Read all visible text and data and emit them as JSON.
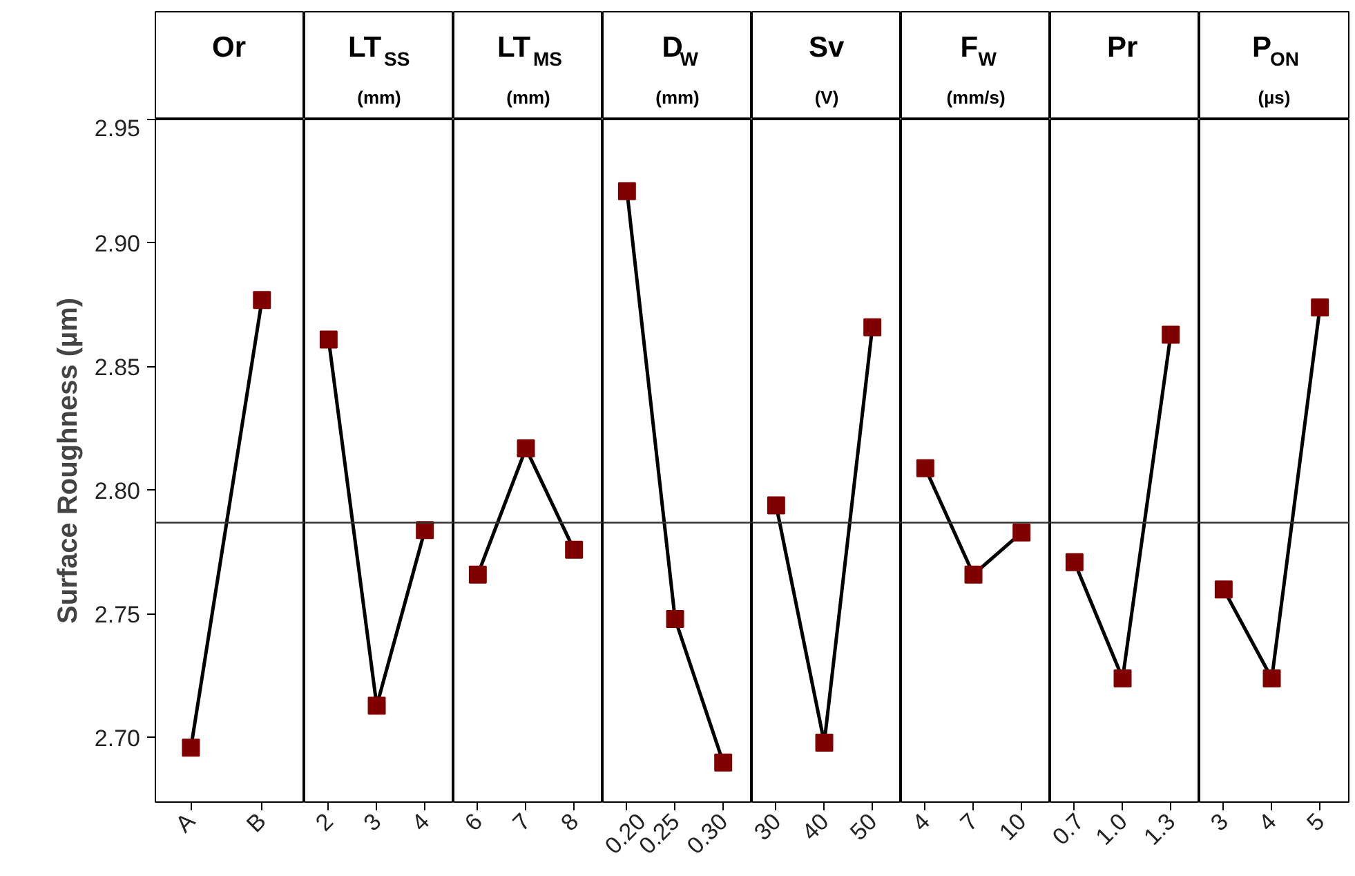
{
  "chart_data": [
    {
      "type": "line",
      "title": "Or",
      "ylabel": "Surface Roughness (µm)",
      "categories": [
        "A",
        "B"
      ],
      "series": [
        {
          "color": "#800000",
          "values": [
            2.696,
            2.877
          ]
        }
      ],
      "ylim": [
        2.674,
        2.95
      ],
      "yticks": [
        {
          "value": 2.7,
          "label": "2.70"
        },
        2.75,
        {
          "value": 2.8,
          "label": "2.80"
        },
        2.85,
        {
          "value": 2.9,
          "label": "2.90"
        },
        2.95
      ],
      "marker": "square",
      "ref_lines": [
        {
          "axis": "y",
          "value": 2.787
        }
      ]
    },
    {
      "type": "line",
      "title": "LT$_{SS}$",
      "subtitle": "(mm)",
      "categories": [
        "2",
        "3",
        "4"
      ],
      "series": [
        {
          "color": "#800000",
          "values": [
            2.861,
            2.713,
            2.784
          ]
        }
      ],
      "ylim": [
        2.674,
        2.95
      ],
      "tick_labels": "x",
      "marker": "square",
      "ref_lines": [
        {
          "axis": "y",
          "value": 2.787
        }
      ]
    },
    {
      "type": "line",
      "title": "LT$_{MS}$",
      "subtitle": "(mm)",
      "categories": [
        "6",
        "7",
        "8"
      ],
      "series": [
        {
          "color": "#800000",
          "values": [
            2.766,
            2.817,
            2.776
          ]
        }
      ],
      "ylim": [
        2.674,
        2.95
      ],
      "tick_labels": "x",
      "marker": "square",
      "ref_lines": [
        {
          "axis": "y",
          "value": 2.787
        }
      ]
    },
    {
      "type": "line",
      "title": "D$_{W}$",
      "subtitle": "(mm)",
      "categories": [
        "0.20",
        "0.25",
        "0.30"
      ],
      "series": [
        {
          "color": "#800000",
          "values": [
            2.921,
            2.748,
            2.69
          ]
        }
      ],
      "ylim": [
        2.674,
        2.95
      ],
      "tick_labels": "x",
      "marker": "square",
      "ref_lines": [
        {
          "axis": "y",
          "value": 2.787
        }
      ]
    },
    {
      "type": "line",
      "title": "Sv",
      "subtitle": "(V)",
      "categories": [
        "30",
        "40",
        "50"
      ],
      "series": [
        {
          "color": "#800000",
          "values": [
            2.794,
            2.698,
            2.866
          ]
        }
      ],
      "ylim": [
        2.674,
        2.95
      ],
      "tick_labels": "x",
      "marker": "square",
      "ref_lines": [
        {
          "axis": "y",
          "value": 2.787
        }
      ]
    },
    {
      "type": "line",
      "title": "F$_{W}$",
      "subtitle": "(mm/s)",
      "categories": [
        "4",
        "7",
        "10"
      ],
      "series": [
        {
          "color": "#800000",
          "values": [
            2.809,
            2.766,
            2.783
          ]
        }
      ],
      "ylim": [
        2.674,
        2.95
      ],
      "tick_labels": "x",
      "marker": "square",
      "ref_lines": [
        {
          "axis": "y",
          "value": 2.787
        }
      ]
    },
    {
      "type": "line",
      "title": "Pr",
      "categories": [
        "0.7",
        "1.0",
        "1.3"
      ],
      "series": [
        {
          "color": "#800000",
          "values": [
            2.771,
            2.724,
            2.863
          ]
        }
      ],
      "ylim": [
        2.674,
        2.95
      ],
      "tick_labels": "x",
      "marker": "square",
      "ref_lines": [
        {
          "axis": "y",
          "value": 2.787
        }
      ]
    },
    {
      "type": "line",
      "title": "P$_{ON}$",
      "subtitle": "(µs)",
      "categories": [
        "3",
        "4",
        "5"
      ],
      "series": [
        {
          "color": "#800000",
          "values": [
            2.76,
            2.724,
            2.874
          ]
        }
      ],
      "ylim": [
        2.674,
        2.95
      ],
      "tick_labels": "x",
      "marker": "square",
      "ref_lines": [
        {
          "axis": "y",
          "value": 2.787
        }
      ]
    }
  ]
}
